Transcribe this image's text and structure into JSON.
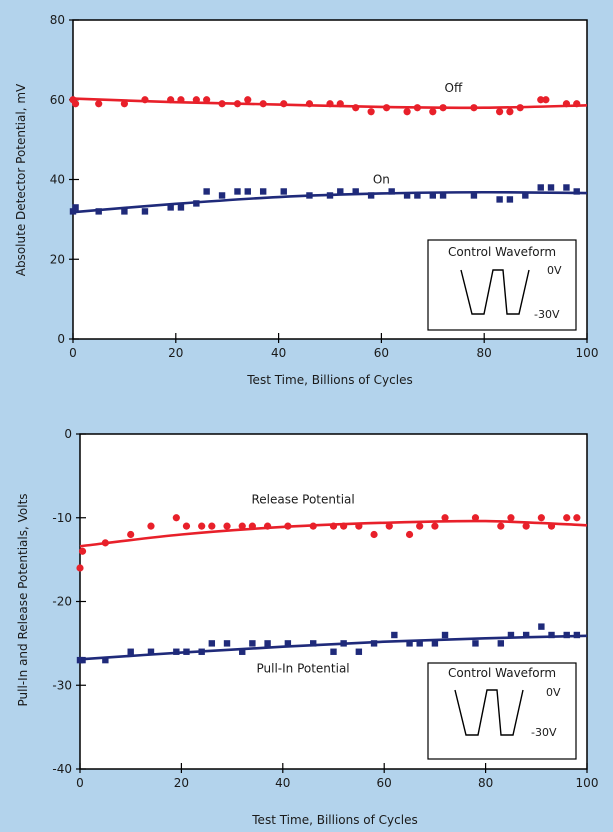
{
  "chart_data": [
    {
      "type": "scatter",
      "title": "",
      "xlabel": "Test Time, Billions of Cycles",
      "ylabel": "Absolute Detector Potential, mV",
      "xlim": [
        0,
        100
      ],
      "ylim": [
        0,
        80
      ],
      "xticks": [
        0,
        20,
        40,
        60,
        80,
        100
      ],
      "yticks": [
        0,
        20,
        40,
        60,
        80
      ],
      "grid": false,
      "series": [
        {
          "name": "Off",
          "marker": "circle",
          "color": "#e8202a",
          "points": [
            [
              0,
              60
            ],
            [
              0.5,
              59
            ],
            [
              5,
              59
            ],
            [
              10,
              59
            ],
            [
              14,
              60
            ],
            [
              19,
              60
            ],
            [
              21,
              60
            ],
            [
              24,
              60
            ],
            [
              26,
              60
            ],
            [
              29,
              59
            ],
            [
              32,
              59
            ],
            [
              34,
              60
            ],
            [
              37,
              59
            ],
            [
              41,
              59
            ],
            [
              46,
              59
            ],
            [
              50,
              59
            ],
            [
              52,
              59
            ],
            [
              55,
              58
            ],
            [
              58,
              57
            ],
            [
              61,
              58
            ],
            [
              65,
              57
            ],
            [
              67,
              58
            ],
            [
              70,
              57
            ],
            [
              72,
              58
            ],
            [
              78,
              58
            ],
            [
              83,
              57
            ],
            [
              85,
              57
            ],
            [
              87,
              58
            ],
            [
              91,
              60
            ],
            [
              92,
              60
            ],
            [
              96,
              59
            ],
            [
              98,
              59
            ]
          ],
          "trend": [
            [
              0,
              60.3
            ],
            [
              20,
              59.4
            ],
            [
              40,
              58.8
            ],
            [
              60,
              58.2
            ],
            [
              80,
              58.0
            ],
            [
              100,
              58.6
            ]
          ]
        },
        {
          "name": "On",
          "marker": "square",
          "color": "#1f2a7a",
          "points": [
            [
              0,
              32
            ],
            [
              0.5,
              33
            ],
            [
              5,
              32
            ],
            [
              10,
              32
            ],
            [
              14,
              32
            ],
            [
              19,
              33
            ],
            [
              21,
              33
            ],
            [
              24,
              34
            ],
            [
              26,
              37
            ],
            [
              29,
              36
            ],
            [
              32,
              37
            ],
            [
              34,
              37
            ],
            [
              37,
              37
            ],
            [
              41,
              37
            ],
            [
              46,
              36
            ],
            [
              50,
              36
            ],
            [
              52,
              37
            ],
            [
              55,
              37
            ],
            [
              58,
              36
            ],
            [
              62,
              37
            ],
            [
              65,
              36
            ],
            [
              67,
              36
            ],
            [
              70,
              36
            ],
            [
              72,
              36
            ],
            [
              78,
              36
            ],
            [
              83,
              35
            ],
            [
              85,
              35
            ],
            [
              88,
              36
            ],
            [
              91,
              38
            ],
            [
              93,
              38
            ],
            [
              96,
              38
            ],
            [
              98,
              37
            ]
          ],
          "trend": [
            [
              0,
              31.8
            ],
            [
              20,
              33.9
            ],
            [
              40,
              35.6
            ],
            [
              60,
              36.5
            ],
            [
              80,
              36.8
            ],
            [
              100,
              36.6
            ]
          ]
        }
      ],
      "annotations": [
        {
          "text": "Off",
          "x": 74,
          "y": 62
        },
        {
          "text": "On",
          "x": 60,
          "y": 39
        }
      ],
      "inset": {
        "title": "Control Waveform",
        "high_label": "0V",
        "low_label": "-30V"
      }
    },
    {
      "type": "scatter",
      "title": "",
      "xlabel": "Test Time, Billions of Cycles",
      "ylabel": "Pull-In and Release Potentials, Volts",
      "xlim": [
        0,
        100
      ],
      "ylim": [
        -40,
        0
      ],
      "xticks": [
        0,
        20,
        40,
        60,
        80,
        100
      ],
      "yticks": [
        0,
        -10,
        -20,
        -30,
        -40
      ],
      "grid": false,
      "series": [
        {
          "name": "Release Potential",
          "marker": "circle",
          "color": "#e8202a",
          "points": [
            [
              0,
              -16
            ],
            [
              0.5,
              -14
            ],
            [
              5,
              -13
            ],
            [
              10,
              -12
            ],
            [
              14,
              -11
            ],
            [
              19,
              -10
            ],
            [
              21,
              -11
            ],
            [
              24,
              -11
            ],
            [
              26,
              -11
            ],
            [
              29,
              -11
            ],
            [
              32,
              -11
            ],
            [
              34,
              -11
            ],
            [
              37,
              -11
            ],
            [
              41,
              -11
            ],
            [
              46,
              -11
            ],
            [
              50,
              -11
            ],
            [
              52,
              -11
            ],
            [
              55,
              -11
            ],
            [
              58,
              -12
            ],
            [
              61,
              -11
            ],
            [
              65,
              -12
            ],
            [
              67,
              -11
            ],
            [
              70,
              -11
            ],
            [
              72,
              -10
            ],
            [
              78,
              -10
            ],
            [
              83,
              -11
            ],
            [
              85,
              -10
            ],
            [
              88,
              -11
            ],
            [
              91,
              -10
            ],
            [
              93,
              -11
            ],
            [
              96,
              -10
            ],
            [
              98,
              -10
            ]
          ],
          "trend": [
            [
              0,
              -13.4
            ],
            [
              20,
              -12.0
            ],
            [
              40,
              -11.1
            ],
            [
              60,
              -10.6
            ],
            [
              80,
              -10.4
            ],
            [
              100,
              -10.9
            ]
          ]
        },
        {
          "name": "Pull-In Potential",
          "marker": "square",
          "color": "#1f2a7a",
          "points": [
            [
              0,
              -27
            ],
            [
              0.5,
              -27
            ],
            [
              5,
              -27
            ],
            [
              10,
              -26
            ],
            [
              14,
              -26
            ],
            [
              19,
              -26
            ],
            [
              21,
              -26
            ],
            [
              24,
              -26
            ],
            [
              26,
              -25
            ],
            [
              29,
              -25
            ],
            [
              32,
              -26
            ],
            [
              34,
              -25
            ],
            [
              37,
              -25
            ],
            [
              41,
              -25
            ],
            [
              46,
              -25
            ],
            [
              50,
              -26
            ],
            [
              52,
              -25
            ],
            [
              55,
              -26
            ],
            [
              58,
              -25
            ],
            [
              62,
              -24
            ],
            [
              65,
              -25
            ],
            [
              67,
              -25
            ],
            [
              70,
              -25
            ],
            [
              72,
              -24
            ],
            [
              78,
              -25
            ],
            [
              83,
              -25
            ],
            [
              85,
              -24
            ],
            [
              88,
              -24
            ],
            [
              91,
              -23
            ],
            [
              93,
              -24
            ],
            [
              96,
              -24
            ],
            [
              98,
              -24
            ]
          ],
          "trend": [
            [
              0,
              -26.9
            ],
            [
              20,
              -26.1
            ],
            [
              40,
              -25.4
            ],
            [
              60,
              -24.8
            ],
            [
              80,
              -24.4
            ],
            [
              100,
              -24.1
            ]
          ]
        }
      ],
      "annotations": [
        {
          "text": "Release Potential",
          "x": 44,
          "y": -8.3
        },
        {
          "text": "Pull-In Potential",
          "x": 44,
          "y": -28.5
        }
      ],
      "inset": {
        "title": "Control Waveform",
        "high_label": "0V",
        "low_label": "-30V"
      }
    }
  ]
}
